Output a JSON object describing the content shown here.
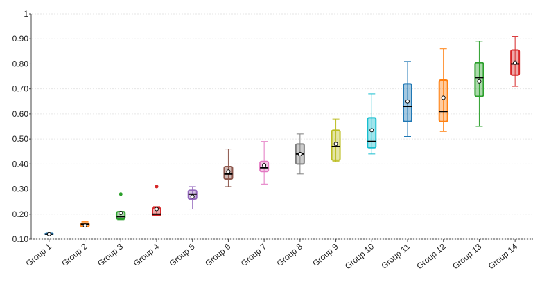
{
  "chart_data": {
    "type": "box",
    "categories": [
      "Group 1",
      "Group 2",
      "Group 3",
      "Group 4",
      "Group 5",
      "Group 6",
      "Group 7",
      "Group 8",
      "Group 9",
      "Group 10",
      "Group 11",
      "Group 12",
      "Group 13",
      "Group 14"
    ],
    "colors": [
      "#1f77b4",
      "#ff7f0e",
      "#2ca02c",
      "#d62728",
      "#9467bd",
      "#8c564b",
      "#e377c2",
      "#7f7f7f",
      "#bcbd22",
      "#17becf",
      "#1f77b4",
      "#ff7f0e",
      "#2ca02c",
      "#d62728"
    ],
    "boxes": [
      {
        "min": 0.12,
        "q1": 0.12,
        "median": 0.12,
        "q3": 0.122,
        "max": 0.125,
        "mean": 0.12
      },
      {
        "min": 0.14,
        "q1": 0.15,
        "median": 0.16,
        "q3": 0.165,
        "max": 0.17,
        "mean": 0.155
      },
      {
        "min": 0.175,
        "q1": 0.18,
        "median": 0.19,
        "q3": 0.21,
        "max": 0.21,
        "mean": 0.205,
        "outliers": [
          0.28
        ]
      },
      {
        "min": 0.195,
        "q1": 0.195,
        "median": 0.2,
        "q3": 0.225,
        "max": 0.23,
        "mean": 0.22,
        "outliers": [
          0.31
        ]
      },
      {
        "min": 0.22,
        "q1": 0.26,
        "median": 0.28,
        "q3": 0.295,
        "max": 0.31,
        "mean": 0.27
      },
      {
        "min": 0.31,
        "q1": 0.34,
        "median": 0.36,
        "q3": 0.39,
        "max": 0.46,
        "mean": 0.37
      },
      {
        "min": 0.32,
        "q1": 0.37,
        "median": 0.385,
        "q3": 0.41,
        "max": 0.49,
        "mean": 0.395
      },
      {
        "min": 0.36,
        "q1": 0.4,
        "median": 0.44,
        "q3": 0.48,
        "max": 0.52,
        "mean": 0.44
      },
      {
        "min": 0.41,
        "q1": 0.415,
        "median": 0.47,
        "q3": 0.535,
        "max": 0.58,
        "mean": 0.48
      },
      {
        "min": 0.44,
        "q1": 0.465,
        "median": 0.49,
        "q3": 0.585,
        "max": 0.68,
        "mean": 0.535
      },
      {
        "min": 0.51,
        "q1": 0.57,
        "median": 0.63,
        "q3": 0.72,
        "max": 0.81,
        "mean": 0.65
      },
      {
        "min": 0.53,
        "q1": 0.57,
        "median": 0.61,
        "q3": 0.735,
        "max": 0.86,
        "mean": 0.665
      },
      {
        "min": 0.55,
        "q1": 0.67,
        "median": 0.745,
        "q3": 0.805,
        "max": 0.89,
        "mean": 0.73
      },
      {
        "min": 0.71,
        "q1": 0.755,
        "median": 0.8,
        "q3": 0.855,
        "max": 0.91,
        "mean": 0.805
      }
    ],
    "ylim": [
      0.1,
      1
    ],
    "yticks": [
      {
        "value": 0.1,
        "label": "0.10"
      },
      {
        "value": 0.2,
        "label": "0.20"
      },
      {
        "value": 0.3,
        "label": "0.30"
      },
      {
        "value": 0.4,
        "label": "0.40"
      },
      {
        "value": 0.5,
        "label": "0.50"
      },
      {
        "value": 0.6,
        "label": "0.60"
      },
      {
        "value": 0.7,
        "label": "0.70"
      },
      {
        "value": 0.8,
        "label": "0.80"
      },
      {
        "value": 0.9,
        "label": "0.90"
      },
      1
    ],
    "grid": true
  }
}
